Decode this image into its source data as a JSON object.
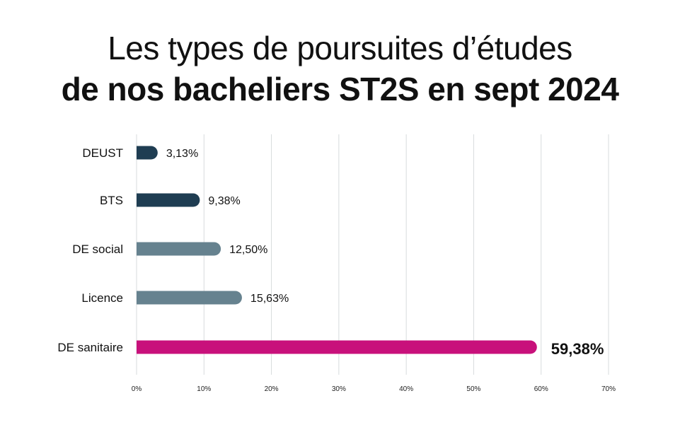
{
  "title": {
    "line1": "Les types de poursuites d’études",
    "line2_prefix": "de",
    "line2_bold": "nos bacheliers ST2S en sept 2024"
  },
  "chart_data": {
    "type": "bar",
    "orientation": "horizontal",
    "categories": [
      "DEUST",
      "BTS",
      "DE social",
      "Licence",
      "DE sanitaire"
    ],
    "values": [
      3.13,
      9.38,
      12.5,
      15.63,
      59.38
    ],
    "value_labels": [
      "3,13%",
      "9,38%",
      "12,50%",
      "15,63%",
      "59,38%"
    ],
    "xlim": [
      0,
      70
    ],
    "xticks": [
      0,
      10,
      20,
      30,
      40,
      50,
      60,
      70
    ],
    "xtick_labels": [
      "0%",
      "10%",
      "20%",
      "30%",
      "40%",
      "50%",
      "60%",
      "70%"
    ],
    "grid": true,
    "colors": [
      "#1f3d52",
      "#1f3d52",
      "#66828f",
      "#66828f",
      "#c8117b"
    ],
    "highlight_index": 4
  }
}
